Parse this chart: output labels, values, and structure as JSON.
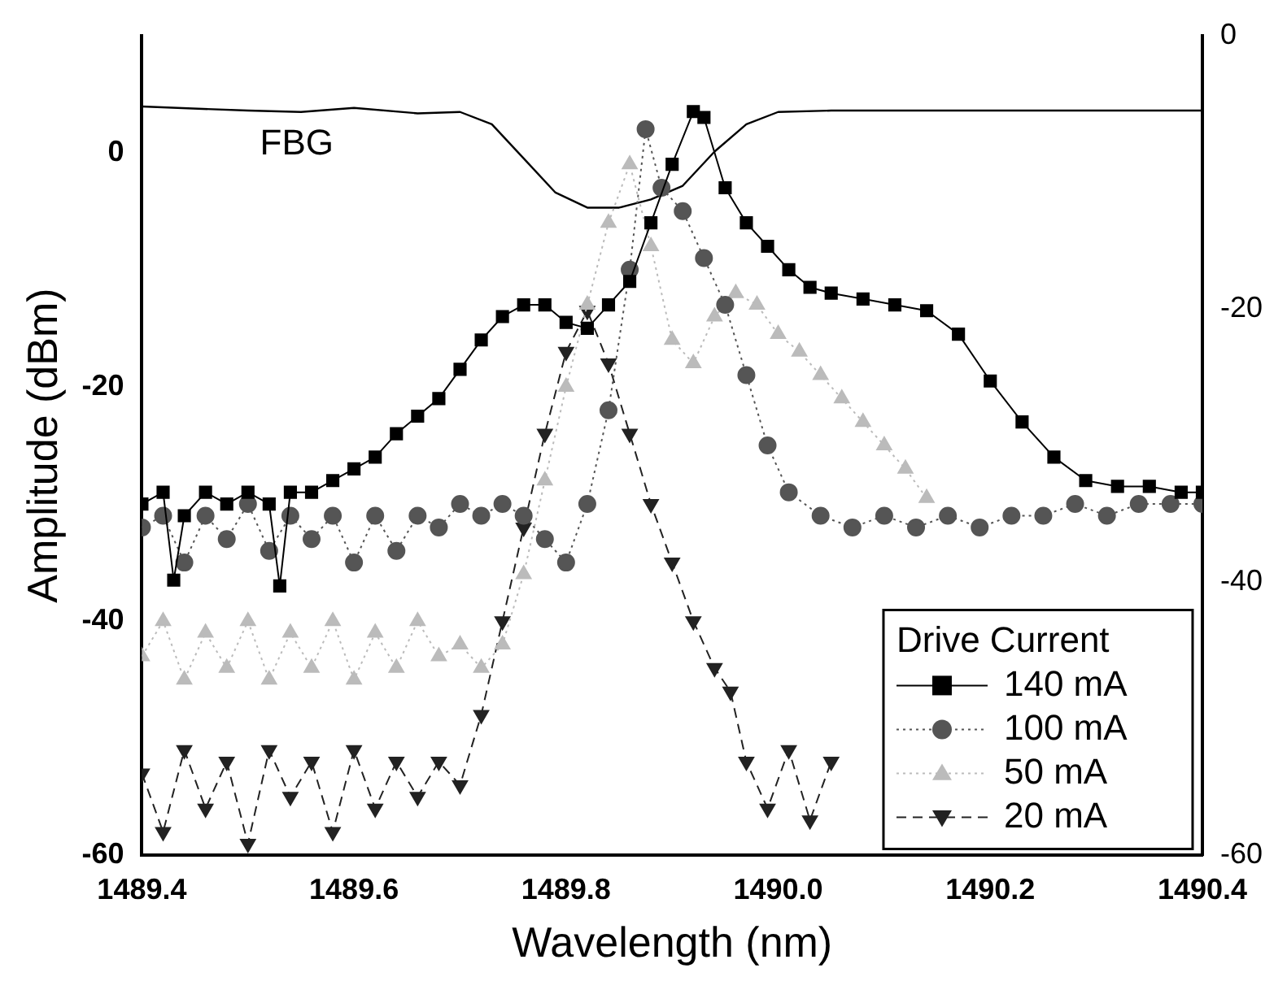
{
  "chart_data": {
    "type": "line",
    "xlabel": "Wavelength (nm)",
    "ylabel": "Amplitude (dBm)",
    "legend_title": "Drive Current",
    "legend": "bottom right",
    "grid": false,
    "xlim": [
      1489.4,
      1490.4
    ],
    "xticks": [
      1489.4,
      1489.6,
      1489.8,
      {
        "value": 1490,
        "label": "1490.0"
      },
      1490.2,
      1490.4
    ],
    "ylim": [
      -60,
      10
    ],
    "yticks": [
      -60,
      -40,
      -20,
      0
    ],
    "y2lim": [
      -60,
      0
    ],
    "y2ticks": [
      -60,
      -40,
      -20,
      0
    ],
    "series": [
      {
        "name": "140 mA",
        "color": "#000000",
        "marker": "square",
        "line_style": "solid",
        "x": [
          1489.4,
          1489.42,
          1489.43,
          1489.44,
          1489.46,
          1489.48,
          1489.5,
          1489.52,
          1489.53,
          1489.54,
          1489.56,
          1489.58,
          1489.6,
          1489.62,
          1489.64,
          1489.66,
          1489.68,
          1489.7,
          1489.72,
          1489.74,
          1489.76,
          1489.78,
          1489.8,
          1489.82,
          1489.84,
          1489.86,
          1489.88,
          1489.9,
          1489.92,
          1489.93,
          1489.95,
          1489.97,
          1489.99,
          1490.01,
          1490.03,
          1490.05,
          1490.08,
          1490.11,
          1490.14,
          1490.17,
          1490.2,
          1490.23,
          1490.26,
          1490.29,
          1490.32,
          1490.35,
          1490.38,
          1490.4
        ],
        "values": [
          -30,
          -29,
          -36.5,
          -31,
          -29,
          -30,
          -29,
          -30,
          -37,
          -29,
          -29,
          -28,
          -27,
          -26,
          -24,
          -22.5,
          -21,
          -18.5,
          -16,
          -14,
          -13,
          -13,
          -14.5,
          -15,
          -13,
          -11,
          -6,
          -1,
          3.5,
          3,
          -3,
          -6,
          -8,
          -10,
          -11.5,
          -12,
          -12.5,
          -13,
          -13.5,
          -15.5,
          -19.5,
          -23,
          -26,
          -28,
          -28.5,
          -28.5,
          -29,
          -29
        ]
      },
      {
        "name": "100 mA",
        "color": "#555555",
        "marker": "circle",
        "line_style": "dotted",
        "x": [
          1489.4,
          1489.42,
          1489.44,
          1489.46,
          1489.48,
          1489.5,
          1489.52,
          1489.54,
          1489.56,
          1489.58,
          1489.6,
          1489.62,
          1489.64,
          1489.66,
          1489.68,
          1489.7,
          1489.72,
          1489.74,
          1489.76,
          1489.78,
          1489.8,
          1489.82,
          1489.84,
          1489.86,
          1489.875,
          1489.89,
          1489.91,
          1489.93,
          1489.95,
          1489.97,
          1489.99,
          1490.01,
          1490.04,
          1490.07,
          1490.1,
          1490.13,
          1490.16,
          1490.19,
          1490.22,
          1490.25,
          1490.28,
          1490.31,
          1490.34,
          1490.37,
          1490.4
        ],
        "values": [
          -32,
          -31,
          -35,
          -31,
          -33,
          -30,
          -34,
          -31,
          -33,
          -31,
          -35,
          -31,
          -34,
          -31,
          -32,
          -30,
          -31,
          -30,
          -31,
          -33,
          -35,
          -30,
          -22,
          -10,
          2,
          -3,
          -5,
          -9,
          -13,
          -19,
          -25,
          -29,
          -31,
          -32,
          -31,
          -32,
          -31,
          -32,
          -31,
          -31,
          -30,
          -31,
          -30,
          -30,
          -30
        ]
      },
      {
        "name": "50 mA",
        "color": "#bbbbbb",
        "marker": "triangle",
        "line_style": "dotted",
        "x": [
          1489.4,
          1489.42,
          1489.44,
          1489.46,
          1489.48,
          1489.5,
          1489.52,
          1489.54,
          1489.56,
          1489.58,
          1489.6,
          1489.62,
          1489.64,
          1489.66,
          1489.68,
          1489.7,
          1489.72,
          1489.74,
          1489.76,
          1489.78,
          1489.8,
          1489.82,
          1489.84,
          1489.86,
          1489.88,
          1489.9,
          1489.92,
          1489.94,
          1489.96,
          1489.98,
          1490,
          1490.02,
          1490.04,
          1490.06,
          1490.08,
          1490.1,
          1490.12,
          1490.14
        ],
        "values": [
          -43,
          -40,
          -45,
          -41,
          -44,
          -40,
          -45,
          -41,
          -44,
          -40,
          -45,
          -41,
          -44,
          -40,
          -43,
          -42,
          -44,
          -42,
          -36,
          -28,
          -20,
          -13,
          -6,
          -1,
          -8,
          -16,
          -18,
          -14,
          -12,
          -13,
          -15.5,
          -17,
          -19,
          -21,
          -23,
          -25,
          -27,
          -29.5
        ]
      },
      {
        "name": "20 mA",
        "color": "#222222",
        "marker": "triangle_down",
        "line_style": "dashed",
        "x": [
          1489.4,
          1489.42,
          1489.44,
          1489.46,
          1489.48,
          1489.5,
          1489.52,
          1489.54,
          1489.56,
          1489.58,
          1489.6,
          1489.62,
          1489.64,
          1489.66,
          1489.68,
          1489.7,
          1489.72,
          1489.74,
          1489.76,
          1489.78,
          1489.8,
          1489.82,
          1489.84,
          1489.86,
          1489.88,
          1489.9,
          1489.92,
          1489.94,
          1489.955,
          1489.97,
          1489.99,
          1490.01,
          1490.03,
          1490.05
        ],
        "values": [
          -53,
          -58,
          -51,
          -56,
          -52,
          -59,
          -51,
          -55,
          -52,
          -58,
          -51,
          -56,
          -52,
          -55,
          -52,
          -54,
          -48,
          -40,
          -32,
          -24,
          -17,
          -13.5,
          -18,
          -24,
          -30,
          -35,
          -40,
          -44,
          -46,
          -52,
          -56,
          -51,
          -57,
          -52
        ]
      },
      {
        "name": "FBG",
        "color": "#000000",
        "marker": "none",
        "line_style": "solid",
        "axis": "y2",
        "x": [
          1489.4,
          1489.5,
          1489.55,
          1489.6,
          1489.66,
          1489.7,
          1489.73,
          1489.76,
          1489.79,
          1489.82,
          1489.85,
          1489.88,
          1489.91,
          1489.94,
          1489.97,
          1490,
          1490.05,
          1490.4
        ],
        "values": [
          -5.2,
          -5.5,
          -5.6,
          -5.3,
          -5.7,
          -5.6,
          -6.5,
          -9,
          -11.5,
          -12.6,
          -12.6,
          -12,
          -11,
          -8.5,
          -6.5,
          -5.6,
          -5.5,
          -5.5
        ]
      }
    ]
  }
}
